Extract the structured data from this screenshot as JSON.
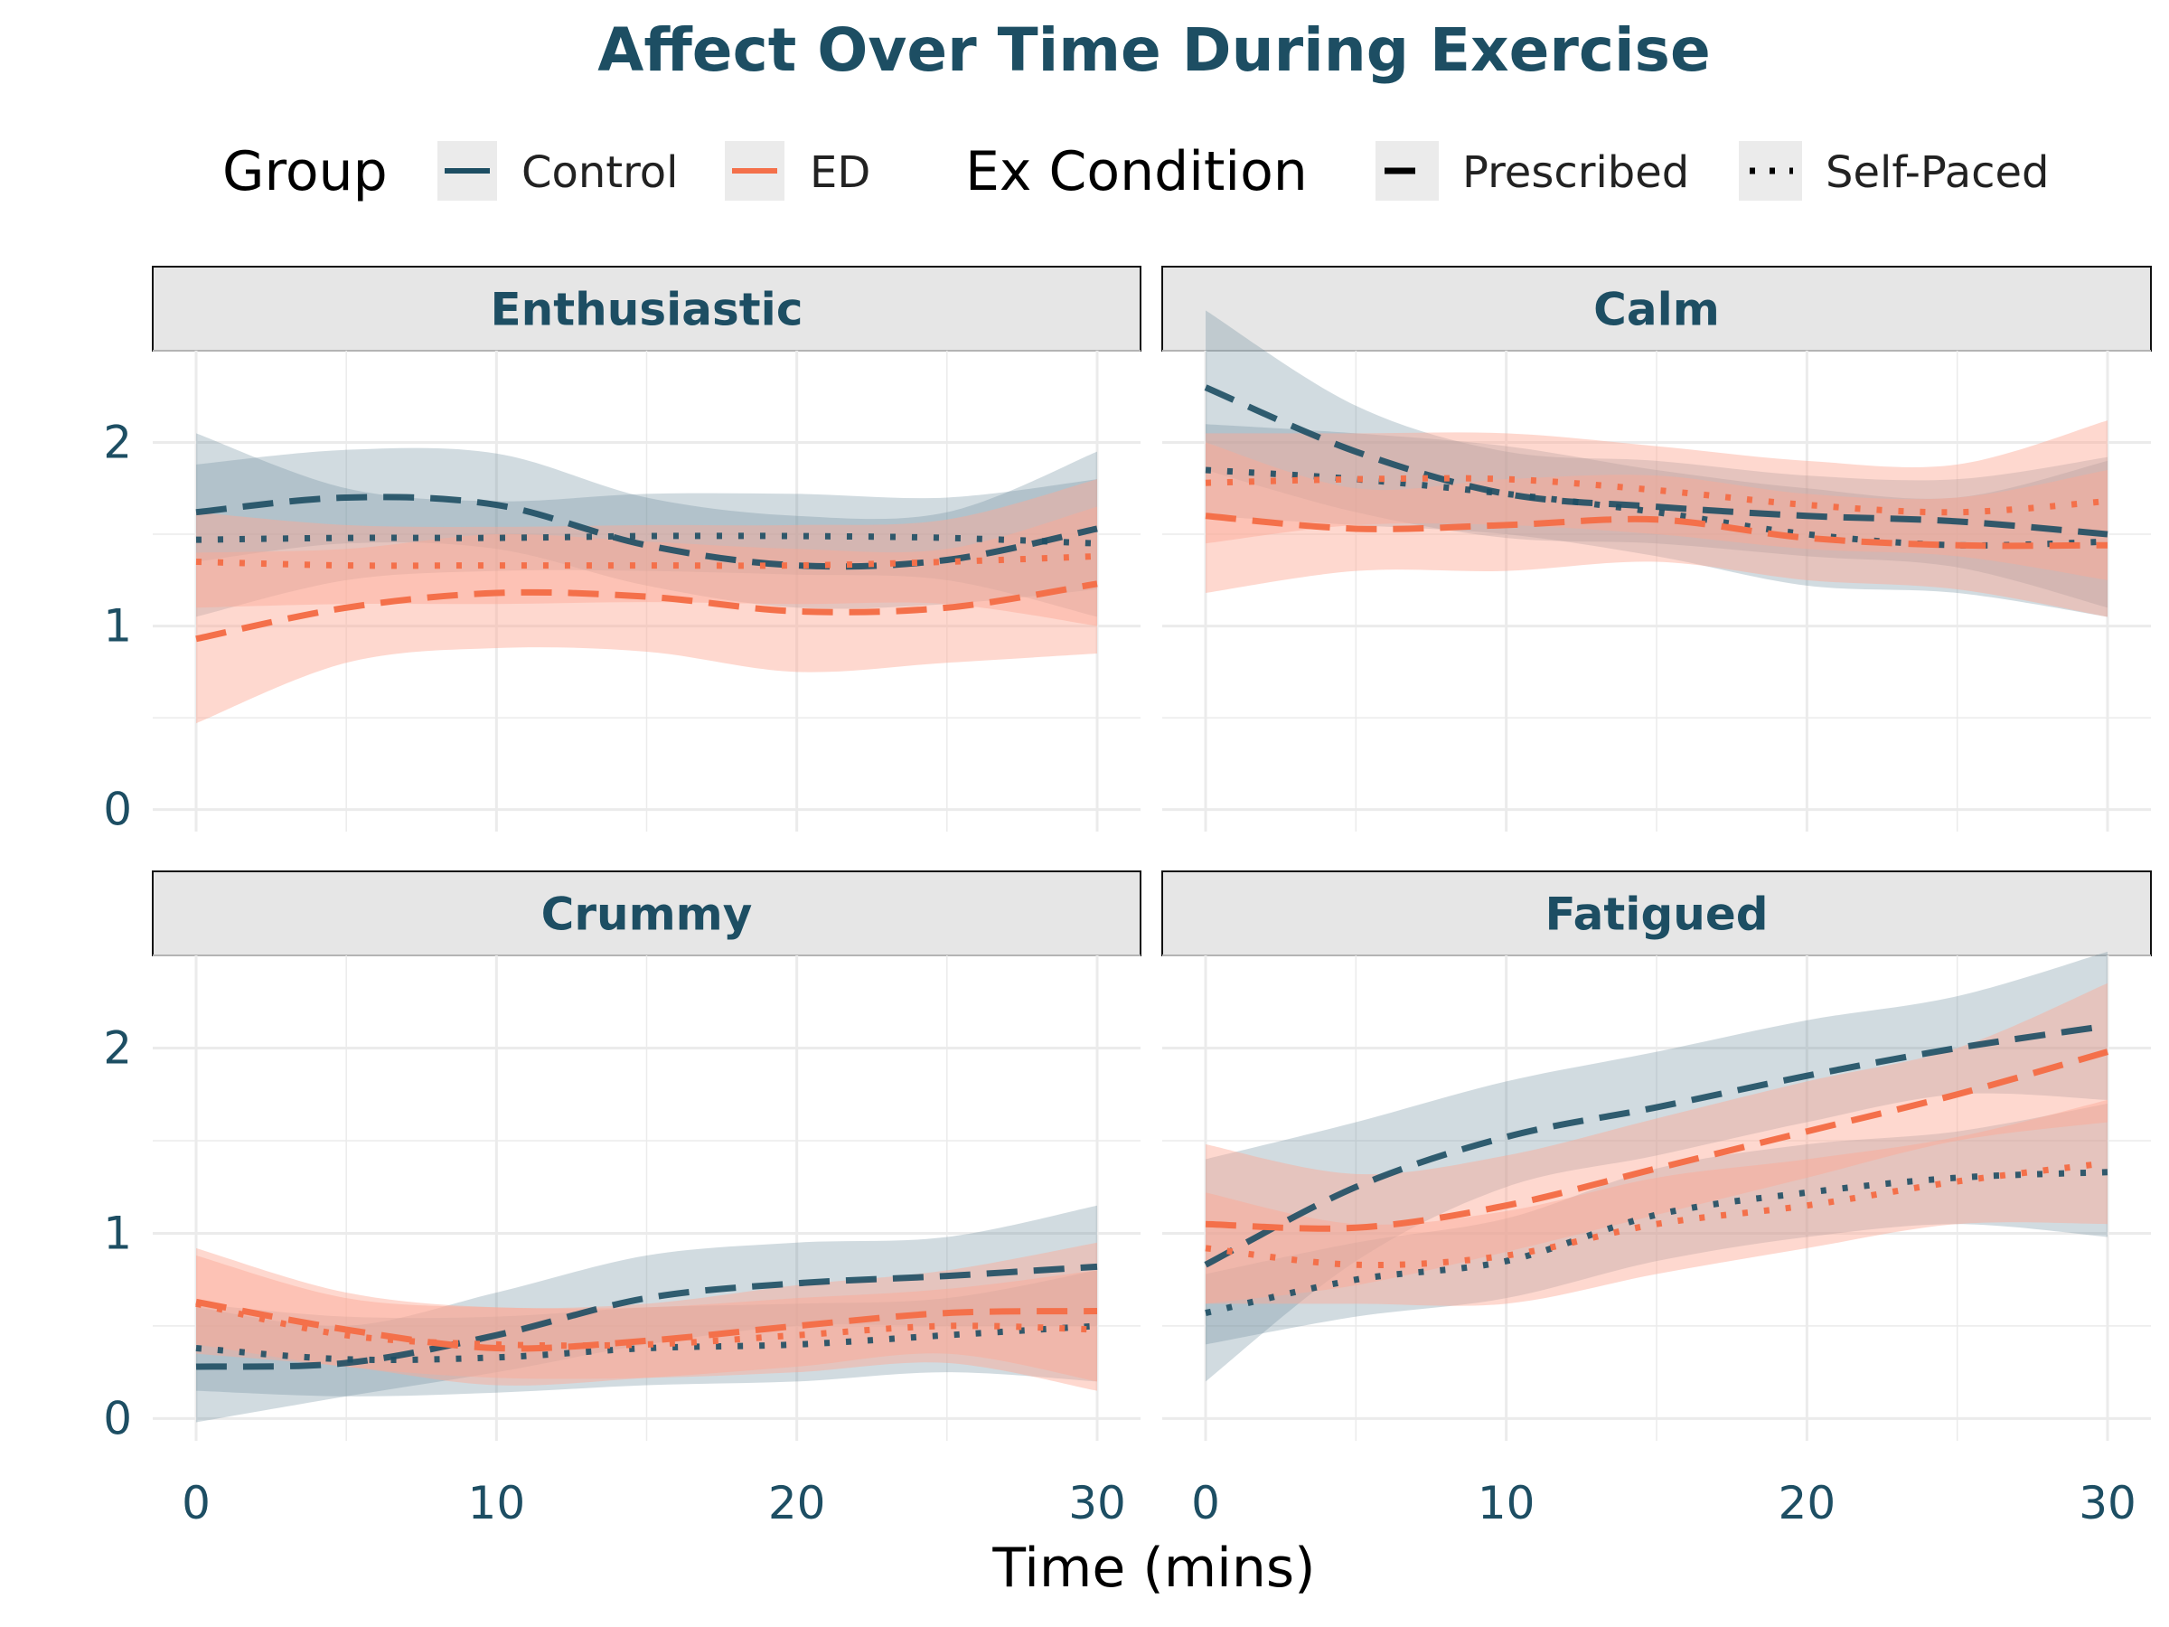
{
  "chart_data": {
    "type": "line",
    "title": "Affect Over Time During Exercise",
    "xlabel": "Time (mins)",
    "ylabel": "",
    "xlim": [
      0,
      30
    ],
    "ylim": [
      0,
      2.5
    ],
    "x_ticks": [
      0,
      10,
      20,
      30
    ],
    "y_ticks": [
      0,
      1,
      2
    ],
    "grid": true,
    "legend": {
      "placement": "top",
      "group": {
        "title": "Group",
        "entries": [
          {
            "label": "Control",
            "color": "#1d4e63"
          },
          {
            "label": "ED",
            "color": "#f4704a"
          }
        ]
      },
      "condition": {
        "title": "Ex Condition",
        "entries": [
          {
            "label": "Prescribed",
            "linetype": "dashed"
          },
          {
            "label": "Self-Paced",
            "linetype": "dotted"
          }
        ]
      }
    },
    "x": [
      0,
      5,
      10,
      15,
      20,
      25,
      30
    ],
    "panels": [
      {
        "name": "Enthusiastic",
        "series": [
          {
            "group": "Control",
            "condition": "Prescribed",
            "values": [
              1.62,
              1.7,
              1.66,
              1.44,
              1.33,
              1.36,
              1.53
            ],
            "lower": [
              1.35,
              1.45,
              1.42,
              1.22,
              1.1,
              1.12,
              1.2
            ],
            "upper": [
              1.88,
              1.96,
              1.94,
              1.7,
              1.6,
              1.62,
              1.95
            ]
          },
          {
            "group": "Control",
            "condition": "Self-Paced",
            "values": [
              1.47,
              1.48,
              1.48,
              1.49,
              1.49,
              1.48,
              1.45
            ],
            "lower": [
              1.05,
              1.25,
              1.3,
              1.3,
              1.28,
              1.25,
              1.05
            ],
            "upper": [
              2.05,
              1.75,
              1.68,
              1.72,
              1.72,
              1.7,
              1.8
            ]
          },
          {
            "group": "ED",
            "condition": "Prescribed",
            "values": [
              0.93,
              1.1,
              1.18,
              1.16,
              1.08,
              1.1,
              1.23
            ],
            "lower": [
              0.47,
              0.8,
              0.88,
              0.86,
              0.75,
              0.8,
              0.85
            ],
            "upper": [
              1.4,
              1.42,
              1.5,
              1.46,
              1.42,
              1.42,
              1.65
            ]
          },
          {
            "group": "ED",
            "condition": "Self-Paced",
            "values": [
              1.35,
              1.33,
              1.33,
              1.33,
              1.33,
              1.35,
              1.38
            ],
            "lower": [
              1.1,
              1.12,
              1.12,
              1.13,
              1.12,
              1.12,
              1.0
            ],
            "upper": [
              1.62,
              1.55,
              1.54,
              1.55,
              1.55,
              1.58,
              1.8
            ]
          }
        ]
      },
      {
        "name": "Calm",
        "series": [
          {
            "group": "Control",
            "condition": "Prescribed",
            "values": [
              2.3,
              1.95,
              1.72,
              1.65,
              1.6,
              1.57,
              1.5
            ],
            "lower": [
              1.85,
              1.62,
              1.48,
              1.45,
              1.38,
              1.32,
              1.1
            ],
            "upper": [
              2.72,
              2.2,
              1.95,
              1.9,
              1.82,
              1.8,
              1.92
            ]
          },
          {
            "group": "Control",
            "condition": "Self-Paced",
            "values": [
              1.85,
              1.8,
              1.72,
              1.62,
              1.5,
              1.44,
              1.46
            ],
            "lower": [
              1.6,
              1.55,
              1.5,
              1.38,
              1.22,
              1.18,
              1.05
            ],
            "upper": [
              2.1,
              2.05,
              1.98,
              1.85,
              1.75,
              1.7,
              1.9
            ]
          },
          {
            "group": "ED",
            "condition": "Prescribed",
            "values": [
              1.6,
              1.53,
              1.55,
              1.58,
              1.48,
              1.44,
              1.44
            ],
            "lower": [
              1.18,
              1.3,
              1.3,
              1.35,
              1.25,
              1.2,
              1.05
            ],
            "upper": [
              2.0,
              1.75,
              1.8,
              1.82,
              1.72,
              1.7,
              1.85
            ]
          },
          {
            "group": "ED",
            "condition": "Self-Paced",
            "values": [
              1.78,
              1.8,
              1.8,
              1.74,
              1.66,
              1.62,
              1.68
            ],
            "lower": [
              1.45,
              1.55,
              1.55,
              1.5,
              1.42,
              1.38,
              1.25
            ],
            "upper": [
              2.05,
              2.05,
              2.05,
              1.98,
              1.9,
              1.88,
              2.12
            ]
          }
        ]
      },
      {
        "name": "Crummy",
        "series": [
          {
            "group": "Control",
            "condition": "Prescribed",
            "values": [
              0.28,
              0.3,
              0.45,
              0.65,
              0.73,
              0.77,
              0.82
            ],
            "lower": [
              -0.02,
              0.12,
              0.25,
              0.4,
              0.5,
              0.5,
              0.5
            ],
            "upper": [
              0.6,
              0.5,
              0.68,
              0.88,
              0.95,
              0.98,
              1.15
            ]
          },
          {
            "group": "Control",
            "condition": "Self-Paced",
            "values": [
              0.38,
              0.32,
              0.33,
              0.38,
              0.4,
              0.45,
              0.5
            ],
            "lower": [
              0.15,
              0.12,
              0.14,
              0.18,
              0.2,
              0.25,
              0.2
            ],
            "upper": [
              0.62,
              0.55,
              0.55,
              0.6,
              0.62,
              0.65,
              0.8
            ]
          },
          {
            "group": "ED",
            "condition": "Prescribed",
            "values": [
              0.63,
              0.48,
              0.38,
              0.42,
              0.5,
              0.57,
              0.58
            ],
            "lower": [
              0.35,
              0.28,
              0.18,
              0.22,
              0.28,
              0.35,
              0.2
            ],
            "upper": [
              0.92,
              0.68,
              0.6,
              0.62,
              0.72,
              0.8,
              0.95
            ]
          },
          {
            "group": "ED",
            "condition": "Self-Paced",
            "values": [
              0.62,
              0.45,
              0.4,
              0.4,
              0.45,
              0.5,
              0.48
            ],
            "lower": [
              0.4,
              0.28,
              0.22,
              0.22,
              0.25,
              0.3,
              0.15
            ],
            "upper": [
              0.88,
              0.65,
              0.6,
              0.6,
              0.65,
              0.7,
              0.8
            ]
          }
        ]
      },
      {
        "name": "Fatigued",
        "series": [
          {
            "group": "Control",
            "condition": "Prescribed",
            "values": [
              0.83,
              1.25,
              1.52,
              1.68,
              1.85,
              2.0,
              2.12
            ],
            "lower": [
              0.2,
              0.85,
              1.25,
              1.42,
              1.6,
              1.75,
              1.72
            ],
            "upper": [
              1.4,
              1.6,
              1.82,
              1.98,
              2.15,
              2.28,
              2.52
            ]
          },
          {
            "group": "Control",
            "condition": "Self-Paced",
            "values": [
              0.57,
              0.75,
              0.85,
              1.1,
              1.22,
              1.3,
              1.33
            ],
            "lower": [
              0.4,
              0.55,
              0.65,
              0.85,
              0.98,
              1.05,
              0.98
            ],
            "upper": [
              0.78,
              0.95,
              1.08,
              1.35,
              1.48,
              1.55,
              1.7
            ]
          },
          {
            "group": "ED",
            "condition": "Prescribed",
            "values": [
              1.05,
              1.03,
              1.15,
              1.35,
              1.55,
              1.75,
              1.98
            ],
            "lower": [
              0.62,
              0.72,
              0.9,
              1.1,
              1.3,
              1.5,
              1.6
            ],
            "upper": [
              1.48,
              1.32,
              1.42,
              1.62,
              1.82,
              2.0,
              2.35
            ]
          },
          {
            "group": "ED",
            "condition": "Self-Paced",
            "values": [
              0.92,
              0.83,
              0.88,
              1.05,
              1.15,
              1.28,
              1.38
            ],
            "lower": [
              0.62,
              0.62,
              0.62,
              0.78,
              0.92,
              1.05,
              1.05
            ],
            "upper": [
              1.22,
              1.05,
              1.12,
              1.3,
              1.4,
              1.52,
              1.72
            ]
          }
        ]
      }
    ]
  },
  "colors": {
    "control": "#1d4e63",
    "ed": "#f4704a",
    "control_band": "#6f8f9e",
    "ed_band": "#fca995",
    "strip_bg": "#e6e6e6",
    "grid": "#ebebeb",
    "text": "#1d4e63"
  }
}
